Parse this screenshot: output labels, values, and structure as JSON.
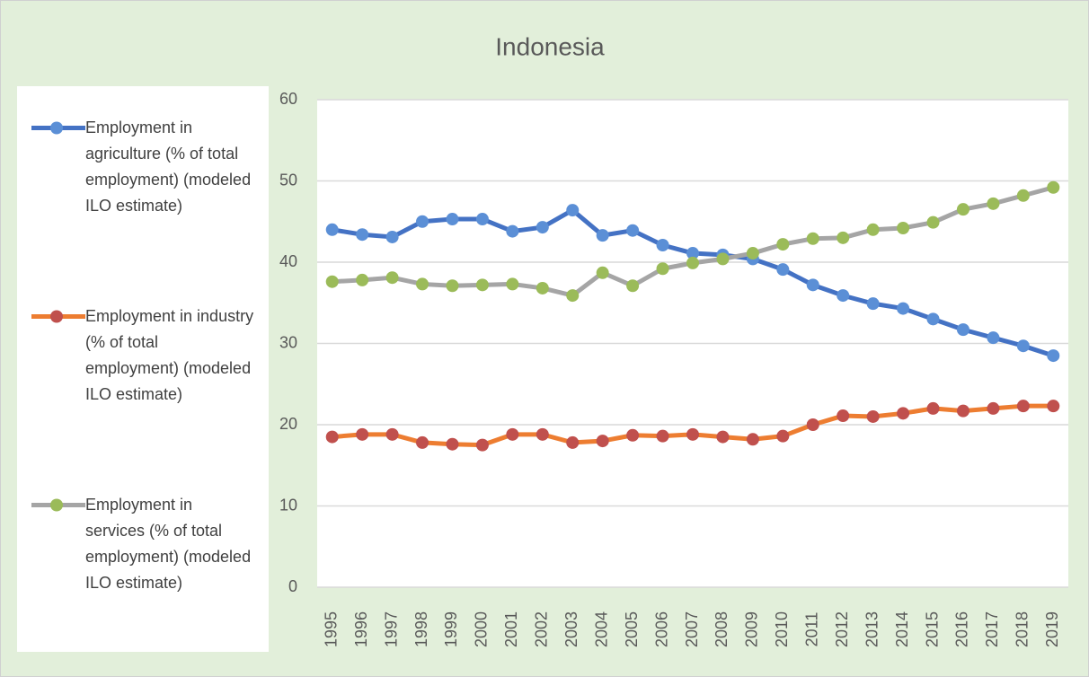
{
  "chart_data": {
    "type": "line",
    "title": "Indonesia",
    "categories": [
      "1995",
      "1996",
      "1997",
      "1998",
      "1999",
      "2000",
      "2001",
      "2002",
      "2003",
      "2004",
      "2005",
      "2006",
      "2007",
      "2008",
      "2009",
      "2010",
      "2011",
      "2012",
      "2013",
      "2014",
      "2015",
      "2016",
      "2017",
      "2018",
      "2019"
    ],
    "series": [
      {
        "name": "Employment in agriculture (% of total employment) (modeled ILO estimate)",
        "color": "#4472c4",
        "marker_color": "#5b8fd6",
        "values": [
          44.0,
          43.4,
          43.1,
          45.0,
          45.3,
          45.3,
          43.8,
          44.3,
          46.4,
          43.3,
          43.9,
          42.1,
          41.1,
          40.9,
          40.4,
          39.1,
          37.2,
          35.9,
          34.9,
          34.3,
          33.0,
          31.7,
          30.7,
          29.7,
          28.5
        ]
      },
      {
        "name": "Employment in industry (% of total employment) (modeled ILO estimate)",
        "color": "#ed7d31",
        "marker_color": "#c0504d",
        "values": [
          18.5,
          18.8,
          18.8,
          17.8,
          17.6,
          17.5,
          18.8,
          18.8,
          17.8,
          18.0,
          18.7,
          18.6,
          18.8,
          18.5,
          18.2,
          18.6,
          20.0,
          21.1,
          21.0,
          21.4,
          22.0,
          21.7,
          22.0,
          22.3,
          22.3
        ]
      },
      {
        "name": "Employment in services (% of total employment) (modeled ILO estimate)",
        "color": "#a5a5a5",
        "marker_color": "#9bbb59",
        "values": [
          37.6,
          37.8,
          38.1,
          37.3,
          37.1,
          37.2,
          37.3,
          36.8,
          35.9,
          38.7,
          37.1,
          39.2,
          39.9,
          40.4,
          41.1,
          42.2,
          42.9,
          43.0,
          44.0,
          44.2,
          44.9,
          46.5,
          47.2,
          48.2,
          49.2
        ]
      }
    ],
    "ylim": [
      0,
      60
    ],
    "yticks": [
      0,
      10,
      20,
      30,
      40,
      50,
      60
    ],
    "grid": true,
    "legend": "left"
  }
}
